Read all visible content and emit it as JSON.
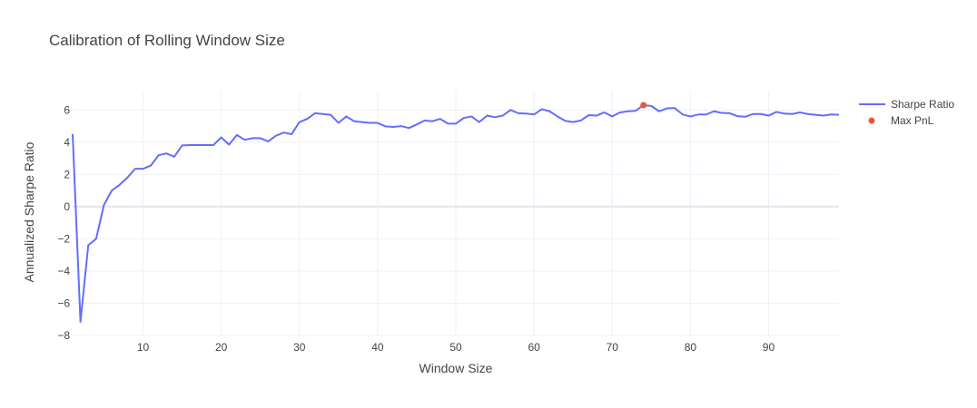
{
  "chart_data": {
    "type": "line",
    "title": "Calibration of Rolling Window Size",
    "xlabel": "Window Size",
    "ylabel": "Annualized Sharpe Ratio",
    "xlim": [
      1,
      99
    ],
    "ylim": [
      -8,
      7.2
    ],
    "x_ticks": [
      10,
      20,
      30,
      40,
      50,
      60,
      70,
      80,
      90
    ],
    "y_ticks": [
      -8,
      -6,
      -4,
      -2,
      0,
      2,
      4,
      6
    ],
    "x_tick_labels": [
      "10",
      "20",
      "30",
      "40",
      "50",
      "60",
      "70",
      "80",
      "90"
    ],
    "y_tick_labels": [
      "−8",
      "−6",
      "−4",
      "−2",
      "0",
      "2",
      "4",
      "6"
    ],
    "grid": true,
    "legend_position": "top-right",
    "legend": [
      "Sharpe Ratio",
      "Max PnL"
    ],
    "series": [
      {
        "name": "Sharpe Ratio",
        "type": "line",
        "color": "#636efa",
        "x": [
          1,
          2,
          3,
          4,
          5,
          6,
          7,
          8,
          9,
          10,
          11,
          12,
          13,
          14,
          15,
          16,
          17,
          18,
          19,
          20,
          21,
          22,
          23,
          24,
          25,
          26,
          27,
          28,
          29,
          30,
          31,
          32,
          33,
          34,
          35,
          36,
          37,
          38,
          39,
          40,
          41,
          42,
          43,
          44,
          45,
          46,
          47,
          48,
          49,
          50,
          51,
          52,
          53,
          54,
          55,
          56,
          57,
          58,
          59,
          60,
          61,
          62,
          63,
          64,
          65,
          66,
          67,
          68,
          69,
          70,
          71,
          72,
          73,
          74,
          75,
          76,
          77,
          78,
          79,
          80,
          81,
          82,
          83,
          84,
          85,
          86,
          87,
          88,
          89,
          90,
          91,
          92,
          93,
          94,
          95,
          96,
          97,
          98,
          99
        ],
        "y": [
          4.5,
          -7.15,
          -2.4,
          -2.0,
          0.1,
          1.0,
          1.35,
          1.8,
          2.35,
          2.35,
          2.55,
          3.2,
          3.3,
          3.1,
          3.8,
          3.82,
          3.82,
          3.82,
          3.82,
          4.3,
          3.85,
          4.45,
          4.15,
          4.25,
          4.25,
          4.05,
          4.4,
          4.6,
          4.5,
          5.25,
          5.45,
          5.8,
          5.75,
          5.7,
          5.2,
          5.6,
          5.3,
          5.25,
          5.2,
          5.2,
          4.98,
          4.95,
          5.0,
          4.88,
          5.1,
          5.35,
          5.3,
          5.45,
          5.15,
          5.15,
          5.5,
          5.6,
          5.25,
          5.65,
          5.55,
          5.65,
          6.0,
          5.8,
          5.78,
          5.72,
          6.05,
          5.92,
          5.6,
          5.32,
          5.25,
          5.35,
          5.68,
          5.65,
          5.85,
          5.6,
          5.85,
          5.92,
          5.95,
          6.3,
          6.25,
          5.92,
          6.1,
          6.12,
          5.72,
          5.6,
          5.72,
          5.72,
          5.92,
          5.82,
          5.8,
          5.62,
          5.58,
          5.75,
          5.75,
          5.65,
          5.88,
          5.78,
          5.75,
          5.85,
          5.75,
          5.7,
          5.65,
          5.72,
          5.7
        ]
      },
      {
        "name": "Max PnL",
        "type": "scatter",
        "color": "#ef553b",
        "x": [
          74
        ],
        "y": [
          6.3
        ]
      }
    ]
  }
}
